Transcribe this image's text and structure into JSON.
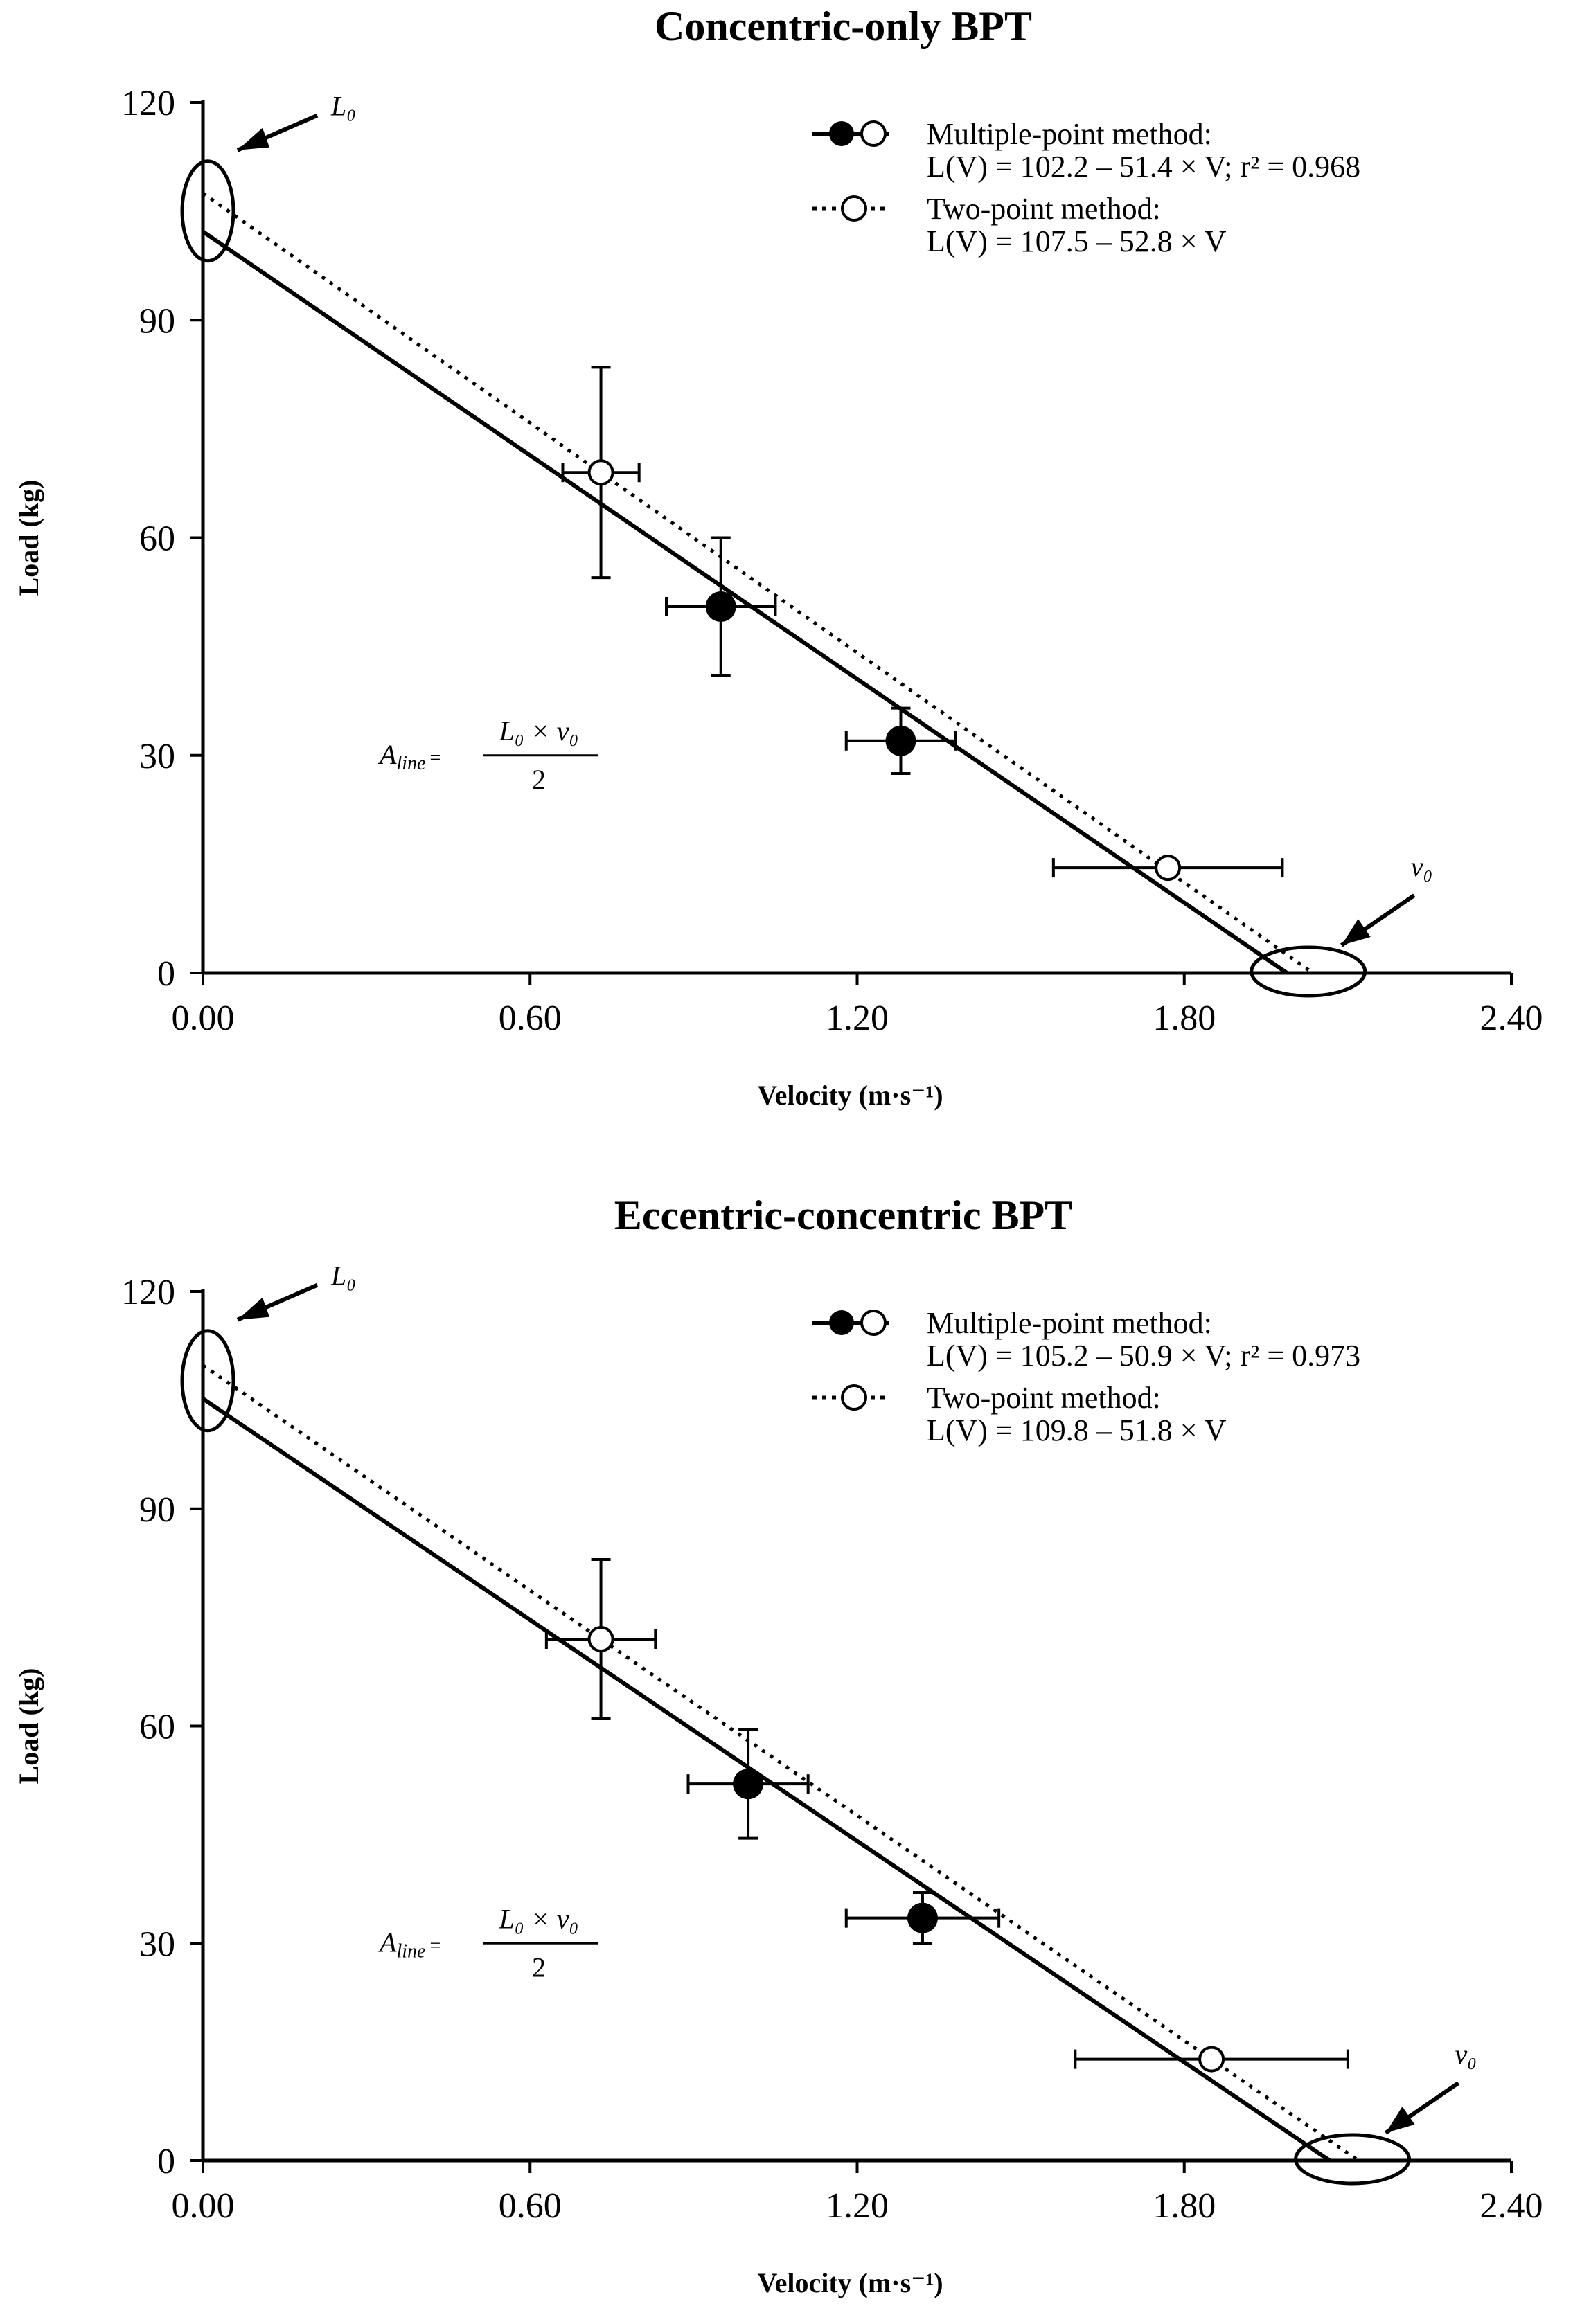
{
  "chart_data": [
    {
      "type": "scatter",
      "title": "Concentric-only BPT",
      "xlabel": "Velocity (m·s⁻¹)",
      "ylabel": "Load (kg)",
      "xlim": [
        0,
        2.4
      ],
      "ylim": [
        0,
        120
      ],
      "x_ticks": [
        "0.00",
        "0.60",
        "1.20",
        "1.80",
        "2.40"
      ],
      "y_ticks": [
        "0",
        "30",
        "60",
        "90",
        "120"
      ],
      "series": [
        {
          "name": "Multiple-point method",
          "marker": "filled",
          "line": "solid",
          "points": [
            {
              "x": 0.95,
              "y": 50.5,
              "x_err": 0.1,
              "y_err": 9.5
            },
            {
              "x": 1.28,
              "y": 32,
              "x_err": 0.1,
              "y_err": 4.5
            }
          ],
          "intercept": 102.2,
          "slope": -51.4,
          "legend_label": "Multiple-point method:",
          "equation": "L(V) = 102.2 – 51.4 × V; r² = 0.968"
        },
        {
          "name": "Two-point method",
          "marker": "open",
          "line": "dotted",
          "points": [
            {
              "x": 0.73,
              "y": 69,
              "x_err": 0.07,
              "y_err": 14.5
            },
            {
              "x": 1.77,
              "y": 14.5,
              "x_err": 0.21,
              "y_err": 0
            }
          ],
          "intercept": 107.5,
          "slope": -52.8,
          "legend_label": "Two-point method:",
          "equation": "L(V) = 107.5 – 52.8 × V"
        }
      ],
      "annotations": {
        "L0": "L₀",
        "v0": "v₀"
      },
      "area_formula": {
        "lhs": "Aline =",
        "numerator": "L₀ × v₀",
        "denominator": "2"
      }
    },
    {
      "type": "scatter",
      "title": "Eccentric-concentric  BPT",
      "xlabel": "Velocity (m·s⁻¹)",
      "ylabel": "Load (kg)",
      "xlim": [
        0,
        2.4
      ],
      "ylim": [
        0,
        120
      ],
      "x_ticks": [
        "0.00",
        "0.60",
        "1.20",
        "1.80",
        "2.40"
      ],
      "y_ticks": [
        "0",
        "30",
        "60",
        "90",
        "120"
      ],
      "series": [
        {
          "name": "Multiple-point method",
          "marker": "filled",
          "line": "solid",
          "points": [
            {
              "x": 1.0,
              "y": 52,
              "x_err": 0.11,
              "y_err": 7.5
            },
            {
              "x": 1.32,
              "y": 33.5,
              "x_err": 0.14,
              "y_err": 3.5
            }
          ],
          "intercept": 105.2,
          "slope": -50.9,
          "legend_label": "Multiple-point method:",
          "equation": "L(V) = 105.2 – 50.9 × V; r² = 0.973"
        },
        {
          "name": "Two-point method",
          "marker": "open",
          "line": "dotted",
          "points": [
            {
              "x": 0.73,
              "y": 72,
              "x_err": 0.1,
              "y_err": 11
            },
            {
              "x": 1.85,
              "y": 14,
              "x_err": 0.25,
              "y_err": 0
            }
          ],
          "intercept": 109.8,
          "slope": -51.8,
          "legend_label": "Two-point method:",
          "equation": "L(V) = 109.8 – 51.8 × V"
        }
      ],
      "annotations": {
        "L0": "L₀",
        "v0": "v₀"
      },
      "area_formula": {
        "lhs": "Aline =",
        "numerator": "L₀ × v₀",
        "denominator": "2"
      }
    }
  ]
}
